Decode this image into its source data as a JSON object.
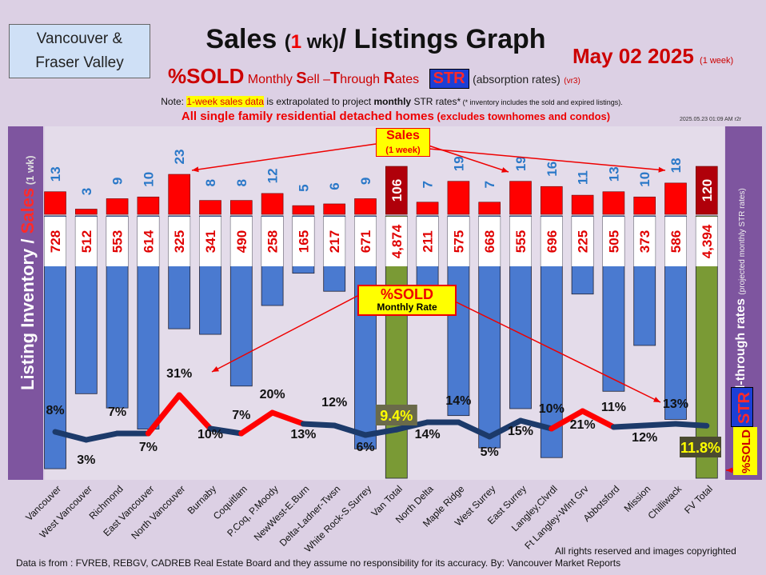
{
  "header": {
    "region_line1": "Vancouver &",
    "region_line2": "Fraser Valley",
    "title_pre": "Sales",
    "title_paren_open": "(",
    "title_one": "1",
    "title_paren_close": " wk)",
    "title_post": "/ Listings Graph",
    "date": "May 02 2025",
    "date_note": "(1 week)",
    "sub_big": "%SOLD",
    "sub_rest_1": "Monthly ",
    "sub_S": "S",
    "sub_rest_2": "ell –",
    "sub_T": "T",
    "sub_rest_3": "hrough ",
    "sub_R": "R",
    "sub_rest_4": "ates",
    "str_badge": "STR",
    "absorb": "(absorption rates)",
    "version": "(vr3)",
    "note_pre": "Note: ",
    "note_hl": "1-week sales data",
    "note_mid": " is extrapolated to project ",
    "note_bold": "monthly",
    "note_post": " STR rates*",
    "note_tiny": " (* inventory includes the sold and expired listings).",
    "all_single": "All single family residential detached homes",
    "all_single_sm": " (excludes townhomes and condos)",
    "stamp": "2025.05.23 01:09 AM r2r"
  },
  "side_labels": {
    "left_main": "Listing Inventory / ",
    "left_red": "Sales",
    "left_small": " (1 wk)",
    "right_main": "Sell-through rates ",
    "right_small": "(projected monthly STR rates)",
    "right_str": "STR",
    "right_sold": "%SOLD"
  },
  "annotations": {
    "sales_label": "Sales",
    "sales_sub": "(1 week)",
    "sold_label": "%SOLD",
    "sold_sub": "Monthly Rate"
  },
  "footer": {
    "source": "Data is from : FVREB, REBGV, CADREB Real Estate Board and they assume no responsibility for its accuracy. By: Vancouver Market Reports",
    "rights": "All rights reserved and  images copyrighted"
  },
  "colors": {
    "inventory_bar": "#4a7ad0",
    "total_bar": "#7a9a35",
    "sales_bar": "#ff0000",
    "total_sales_bar": "#b0000a",
    "inventory_label": "#e00000",
    "sales_label": "#2a78c8",
    "str_line": "#1c3a6a",
    "str_line_hot": "#ff0000"
  },
  "chart_data": {
    "type": "bar",
    "categories": [
      "Vancouver",
      "West Vancouver",
      "Richmond",
      "East Vancouver",
      "North Vancouver",
      "Burnaby",
      "Coquitlam",
      "P.Coq, P.Moody",
      "NewWest-E.Burn",
      "Delta-Ladner-Twsn",
      "White Rock-S.Surrey",
      "Van Total",
      "North Delta",
      "Maple Ridge",
      "West Surrey",
      "East Surrey",
      "Langley,Clvrdl",
      "Ft Langley-Wlnt Grv",
      "Abbotsford",
      "Mission",
      "Chilliwack",
      "FV Total"
    ],
    "series": [
      {
        "name": "Listing Inventory",
        "values": [
          728,
          512,
          553,
          614,
          325,
          341,
          490,
          258,
          165,
          217,
          671,
          4874,
          211,
          575,
          668,
          555,
          696,
          225,
          505,
          373,
          586,
          4394
        ],
        "labels": [
          "728",
          "512",
          "553",
          "614",
          "325",
          "341",
          "490",
          "258",
          "165",
          "217",
          "671",
          "4,874",
          "211",
          "575",
          "668",
          "555",
          "696",
          "225",
          "505",
          "373",
          "586",
          "4,394"
        ]
      },
      {
        "name": "Sales",
        "values": [
          13,
          3,
          9,
          10,
          23,
          8,
          8,
          12,
          5,
          6,
          9,
          106,
          7,
          19,
          7,
          19,
          16,
          11,
          13,
          10,
          18,
          120
        ]
      },
      {
        "name": "%SOLD Monthly STR",
        "values": [
          8,
          3,
          7,
          7,
          31,
          10,
          7,
          20,
          13,
          12,
          6,
          9.4,
          14,
          14,
          5,
          15,
          10,
          21,
          11,
          12,
          13,
          11.8
        ],
        "labels": [
          "8%",
          "3%",
          "7%",
          "7%",
          "31%",
          "10%",
          "7%",
          "20%",
          "13%",
          "12%",
          "6%",
          "9.4%",
          "14%",
          "14%",
          "5%",
          "15%",
          "10%",
          "21%",
          "11%",
          "12%",
          "13%",
          "11.8%"
        ]
      }
    ],
    "title": "Sales (1 wk)/ Listings Graph",
    "ylabel": "Listing Inventory / Sales (1 wk)",
    "y2label": "%SOLD STR Sell-through rates (projected monthly STR rates)"
  }
}
